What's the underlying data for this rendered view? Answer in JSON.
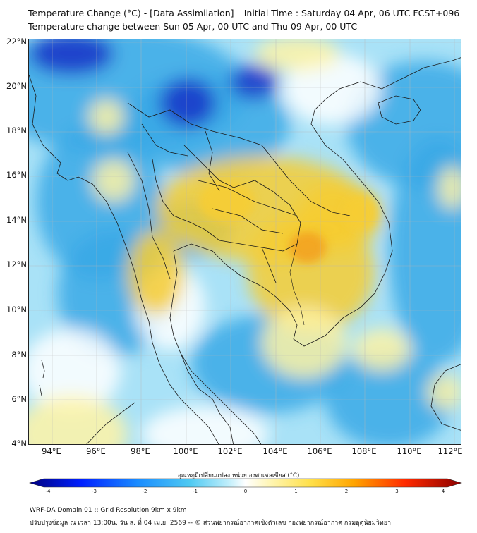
{
  "header": {
    "title_line1": "Temperature Change (°C) - [Data Assimilation] _ Initial Time : Saturday 04 Apr, 06 UTC FCST+096",
    "title_line2": "Temperature change between Sun 05 Apr, 00 UTC and Thu 09 Apr, 00 UTC"
  },
  "map": {
    "lat_labels": [
      "22°N",
      "20°N",
      "18°N",
      "16°N",
      "14°N",
      "12°N",
      "10°N",
      "8°N",
      "6°N",
      "4°N"
    ],
    "lon_labels": [
      "94°E",
      "96°E",
      "98°E",
      "100°E",
      "102°E",
      "104°E",
      "106°E",
      "108°E",
      "110°E",
      "112°E"
    ],
    "field_colors": {
      "strong_cool": "#1533c8",
      "cool": "#38a9e6",
      "light_cool": "#a9e2f7",
      "neutral": "#ffffff",
      "light_warm": "#fff3a6",
      "warm": "#f7cc33",
      "hot": "#f2a01c"
    }
  },
  "colorbar": {
    "title": "อุณหภูมิเปลี่ยนแปลง หน่วย องศาเซลเซียส (°C)",
    "ticks": [
      "-4",
      "-3",
      "-2",
      "-1",
      "0",
      "1",
      "2",
      "3",
      "4"
    ],
    "vmin": -4,
    "vmax": 4
  },
  "footer": {
    "line1": "WRF-DA Domain 01 :: Grid Resolution 9km x 9km",
    "line2": "ปรับปรุงข้อมูล ณ เวลา 13:00น. วัน ส. ที่ 04 เม.ย. 2569 -- © ส่วนพยากรณ์อากาศเชิงตัวเลข กองพยากรณ์อากาศ กรมอุตุนิยมวิทยา"
  }
}
